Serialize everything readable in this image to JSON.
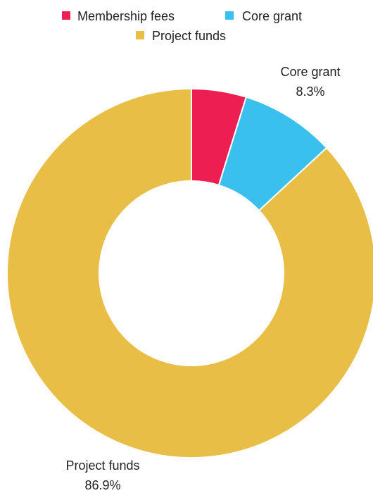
{
  "chart_data": {
    "type": "pie",
    "donut": true,
    "categories": [
      "Membership fees",
      "Core grant",
      "Project funds"
    ],
    "values": [
      4.8,
      8.3,
      86.9
    ],
    "colors": [
      "#ec1e52",
      "#39c0ee",
      "#e9be46"
    ],
    "value_labels": [
      "",
      "8.3%",
      "86.9%"
    ],
    "legend_position": "top"
  }
}
